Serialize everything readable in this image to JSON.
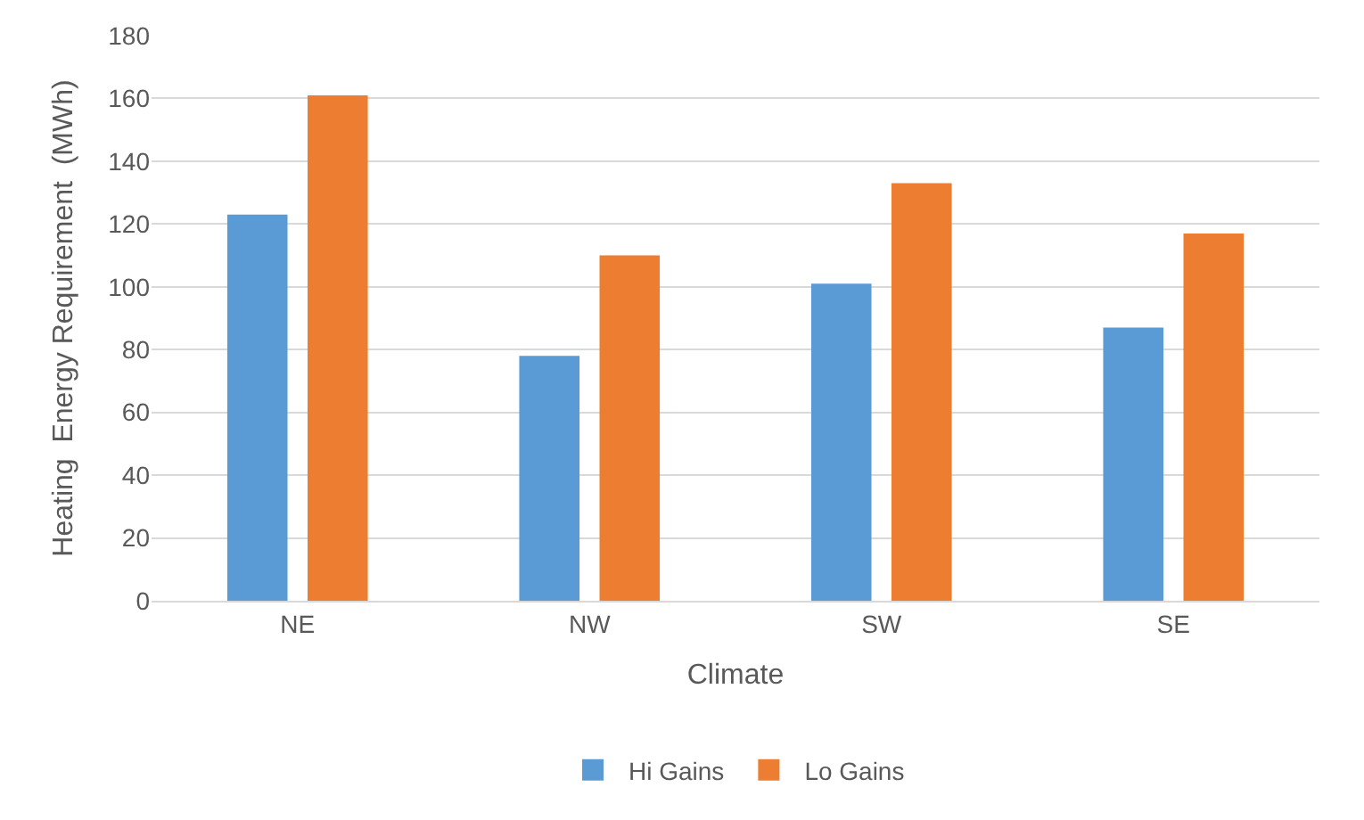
{
  "chart_data": {
    "type": "bar",
    "xlabel": "Climate",
    "ylabel": "Heating  Energy Requirement  (MWh)",
    "categories": [
      "NE",
      "NW",
      "SW",
      "SE"
    ],
    "series": [
      {
        "name": "Hi Gains",
        "color": "#5b9bd5",
        "values": [
          123,
          78,
          101,
          87
        ]
      },
      {
        "name": "Lo Gains",
        "color": "#ed7d31",
        "values": [
          161,
          110,
          133,
          117
        ]
      }
    ],
    "ylim": [
      0,
      180
    ],
    "yticks": [
      0,
      20,
      40,
      60,
      80,
      100,
      120,
      140,
      160,
      180
    ],
    "grid": "y",
    "legend": "bottom"
  }
}
